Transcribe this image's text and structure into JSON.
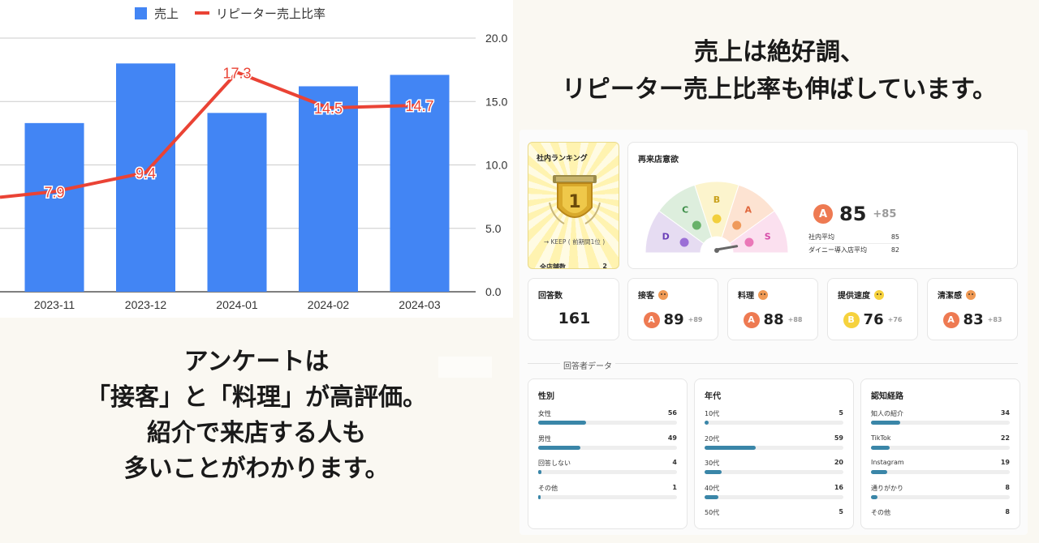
{
  "headline": {
    "line1": "売上は絶好調、",
    "line2": "リピーター売上比率も伸ばしています。"
  },
  "left_message": {
    "line1": "アンケートは",
    "line2": "「接客」と「料理」が高評価。",
    "line3": "紹介で来店する人も",
    "line4": "多いことがわかります。"
  },
  "chart_data": {
    "type": "bar",
    "categories": [
      "2023-11",
      "2023-12",
      "2024-01",
      "2024-02",
      "2024-03"
    ],
    "series": [
      {
        "name": "売上",
        "kind": "bar",
        "color": "#4285f4",
        "values": [
          13.3,
          18.0,
          14.1,
          16.2,
          17.1
        ]
      },
      {
        "name": "リピーター売上比率",
        "kind": "line",
        "color": "#ea4335",
        "values": [
          7.9,
          9.4,
          17.3,
          14.5,
          14.7
        ],
        "labels": [
          "7.9",
          "9.4",
          "17.3",
          "14.5",
          "14.7"
        ]
      }
    ],
    "yticks": [
      "20.0",
      "15.0",
      "10.0",
      "5.0",
      "0.0"
    ],
    "ylim": [
      0,
      20
    ],
    "y_axis_side": "right",
    "grid": true,
    "legend": "top"
  },
  "dashboard": {
    "ranking": {
      "title": "社内ランキング",
      "rank": "1",
      "keep_text": "→ KEEP ( 前期間1位 )",
      "store_count_label": "全店舗数",
      "store_count_value": "2"
    },
    "revisit": {
      "title": "再来店意欲",
      "grade": "A",
      "score": "85",
      "delta": "+85",
      "gauge_letters": [
        "D",
        "C",
        "B",
        "A",
        "S"
      ],
      "gauge_value": 85,
      "rows": [
        {
          "label": "社内平均",
          "value": "85"
        },
        {
          "label": "ダイニー導入店平均",
          "value": "82"
        }
      ]
    },
    "responses": {
      "title": "回答数",
      "value": "161"
    },
    "categories": [
      {
        "label": "接客",
        "grade": "A",
        "score": "89",
        "delta": "+89",
        "face": "orange"
      },
      {
        "label": "料理",
        "grade": "A",
        "score": "88",
        "delta": "+88",
        "face": "orange"
      },
      {
        "label": "提供速度",
        "grade": "B",
        "score": "76",
        "delta": "+76",
        "face": "yellow"
      },
      {
        "label": "清潔感",
        "grade": "A",
        "score": "83",
        "delta": "+83",
        "face": "orange"
      }
    ],
    "respondent_section": "回答者データ",
    "demographics": [
      {
        "title": "性別",
        "max": 161,
        "rows": [
          {
            "label": "女性",
            "value": "56"
          },
          {
            "label": "男性",
            "value": "49"
          },
          {
            "label": "回答しない",
            "value": "4"
          },
          {
            "label": "その他",
            "value": "1"
          }
        ]
      },
      {
        "title": "年代",
        "max": 161,
        "rows": [
          {
            "label": "10代",
            "value": "5"
          },
          {
            "label": "20代",
            "value": "59"
          },
          {
            "label": "30代",
            "value": "20"
          },
          {
            "label": "40代",
            "value": "16"
          },
          {
            "label": "50代",
            "value": "5"
          }
        ]
      },
      {
        "title": "認知経路",
        "max": 161,
        "rows": [
          {
            "label": "知人の紹介",
            "value": "34"
          },
          {
            "label": "TikTok",
            "value": "22"
          },
          {
            "label": "Instagram",
            "value": "19"
          },
          {
            "label": "通りがかり",
            "value": "8"
          },
          {
            "label": "その他",
            "value": "8"
          }
        ]
      }
    ]
  }
}
